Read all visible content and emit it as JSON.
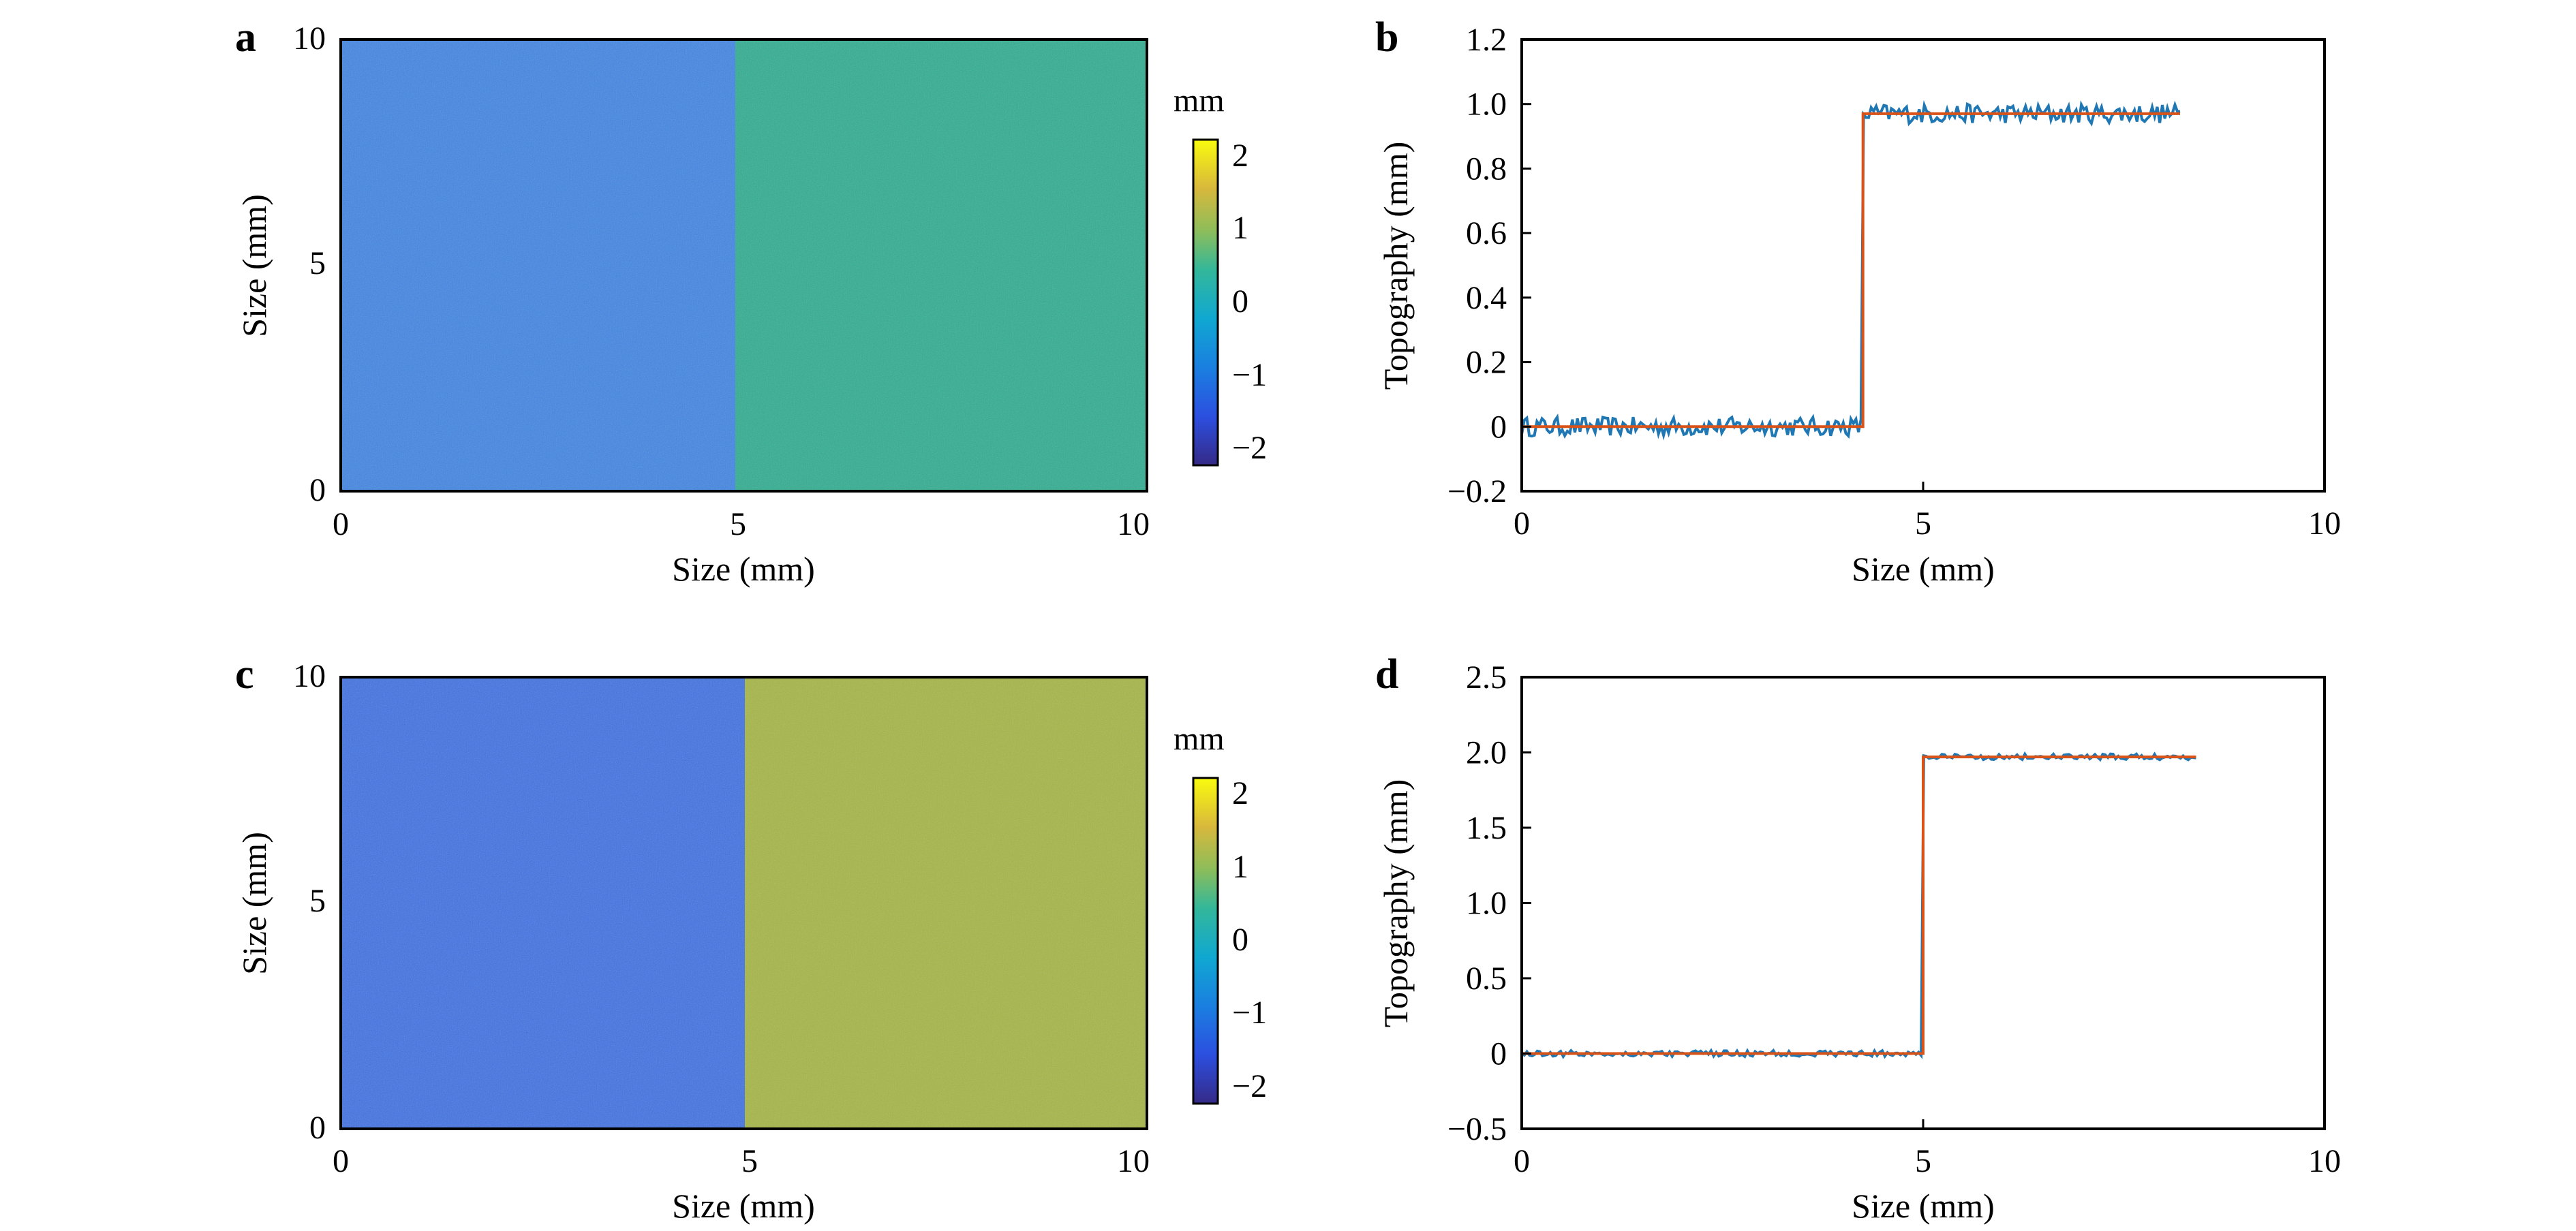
{
  "figure": {
    "panels": [
      {
        "id": "a",
        "label": "a"
      },
      {
        "id": "b",
        "label": "b"
      },
      {
        "id": "c",
        "label": "c"
      },
      {
        "id": "d",
        "label": "d"
      }
    ]
  },
  "colors": {
    "map_low": "#3b83e6",
    "map_high_a": "#29ad8e",
    "map_high_c": "#a5b640",
    "measured_line": "#1f77b4",
    "fit_line": "#d95319",
    "axis": "#000000"
  },
  "chart_data": [
    {
      "panel": "a",
      "type": "heatmap",
      "title": "",
      "xlabel": "Size (mm)",
      "ylabel": "Size (mm)",
      "xlim": [
        0,
        10.2
      ],
      "ylim": [
        0,
        10
      ],
      "xticks": [
        "0",
        "5",
        "10"
      ],
      "yticks": [
        "0",
        "5",
        "10"
      ],
      "description_values": {
        "left_region_level_mm": -0.6,
        "right_region_level_mm": 0.3,
        "step_x_mm": 5.0
      },
      "colorbar": {
        "unit": "mm",
        "range": [
          -2.3,
          2.3
        ],
        "ticks": [
          "−2",
          "−1",
          "0",
          "1",
          "2"
        ],
        "colormap": "parula"
      }
    },
    {
      "panel": "b",
      "type": "line",
      "title": "",
      "xlabel": "Size (mm)",
      "ylabel": "Topography (mm)",
      "xlim": [
        0,
        10
      ],
      "ylim": [
        -0.2,
        1.2
      ],
      "xticks": [
        "0",
        "5",
        "10"
      ],
      "yticks": [
        "−0.2",
        "0",
        "0.2",
        "0.4",
        "0.6",
        "0.8",
        "1.0",
        "1.2"
      ],
      "series": [
        {
          "style": "measured",
          "x_range": [
            0,
            8.2
          ],
          "step_x": 4.25,
          "low": 0.0,
          "high": 0.97,
          "noise": 0.03
        },
        {
          "style": "fit",
          "x": [
            0,
            4.25,
            4.25,
            8.2
          ],
          "y": [
            0.0,
            0.0,
            0.97,
            0.97
          ]
        }
      ]
    },
    {
      "panel": "c",
      "type": "heatmap",
      "title": "",
      "xlabel": "Size (mm)",
      "ylabel": "Size (mm)",
      "xlim": [
        0,
        10.2
      ],
      "ylim": [
        0,
        10
      ],
      "xticks": [
        "0",
        "5",
        "10"
      ],
      "yticks": [
        "0",
        "5",
        "10"
      ],
      "description_values": {
        "left_region_level_mm": -1.0,
        "right_region_level_mm": 1.0,
        "step_x_mm": 5.0
      },
      "colorbar": {
        "unit": "mm",
        "range": [
          -2.3,
          2.3
        ],
        "ticks": [
          "−2",
          "−1",
          "0",
          "1",
          "2"
        ],
        "colormap": "parula"
      }
    },
    {
      "panel": "d",
      "type": "line",
      "title": "",
      "xlabel": "Size (mm)",
      "ylabel": "Topography (mm)",
      "xlim": [
        0,
        10
      ],
      "ylim": [
        -0.5,
        2.5
      ],
      "xticks": [
        "0",
        "5",
        "10"
      ],
      "yticks": [
        "−0.5",
        "0",
        "0.5",
        "1.0",
        "1.5",
        "2.0",
        "2.5"
      ],
      "series": [
        {
          "style": "measured",
          "x_range": [
            0,
            8.4
          ],
          "step_x": 5.0,
          "low": 0.0,
          "high": 1.97,
          "noise": 0.02
        },
        {
          "style": "fit",
          "x": [
            0,
            5.0,
            5.0,
            8.4
          ],
          "y": [
            0.0,
            0.0,
            1.97,
            1.97
          ]
        }
      ]
    }
  ]
}
